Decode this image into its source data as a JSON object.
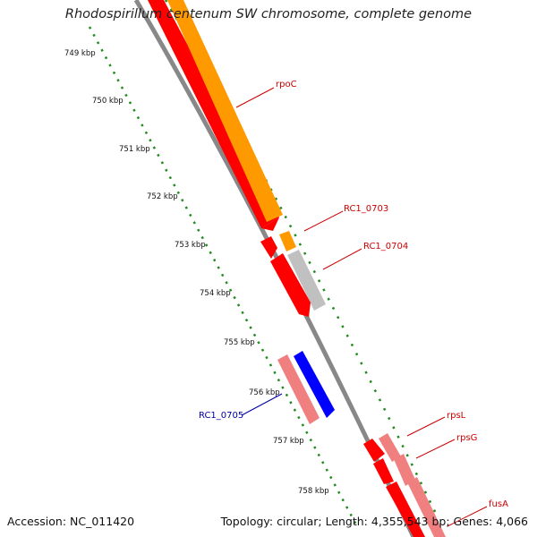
{
  "title": "Rhodospirillum centenum SW chromosome, complete genome",
  "footer": {
    "accession": "Accession: NC_011420",
    "summary": "Topology: circular; Length: 4,355,543 bp; Genes: 4,066"
  },
  "ticks": [
    "749 kbp",
    "750 kbp",
    "751 kbp",
    "752 kbp",
    "753 kbp",
    "754 kbp",
    "755 kbp",
    "756 kbp",
    "757 kbp",
    "758 kbp"
  ],
  "genes": [
    {
      "label": "rpoC",
      "color": "#cc0000"
    },
    {
      "label": "RC1_0703",
      "color": "#cc0000"
    },
    {
      "label": "RC1_0704",
      "color": "#cc0000"
    },
    {
      "label": "RC1_0705",
      "color": "#0000aa"
    },
    {
      "label": "rpsL",
      "color": "#cc0000"
    },
    {
      "label": "rpsG",
      "color": "#cc0000"
    },
    {
      "label": "fusA",
      "color": "#cc0000"
    }
  ],
  "colors": {
    "cds_forward": "#ff0000",
    "cds_forward_light": "#f08080",
    "orange": "#ff9900",
    "gray_feature": "#c0c0c0",
    "blue_feature": "#0000ff",
    "backbone": "#888888",
    "tick_marks": "#228b22",
    "label_red": "#cc0000",
    "label_blue": "#0000aa"
  }
}
